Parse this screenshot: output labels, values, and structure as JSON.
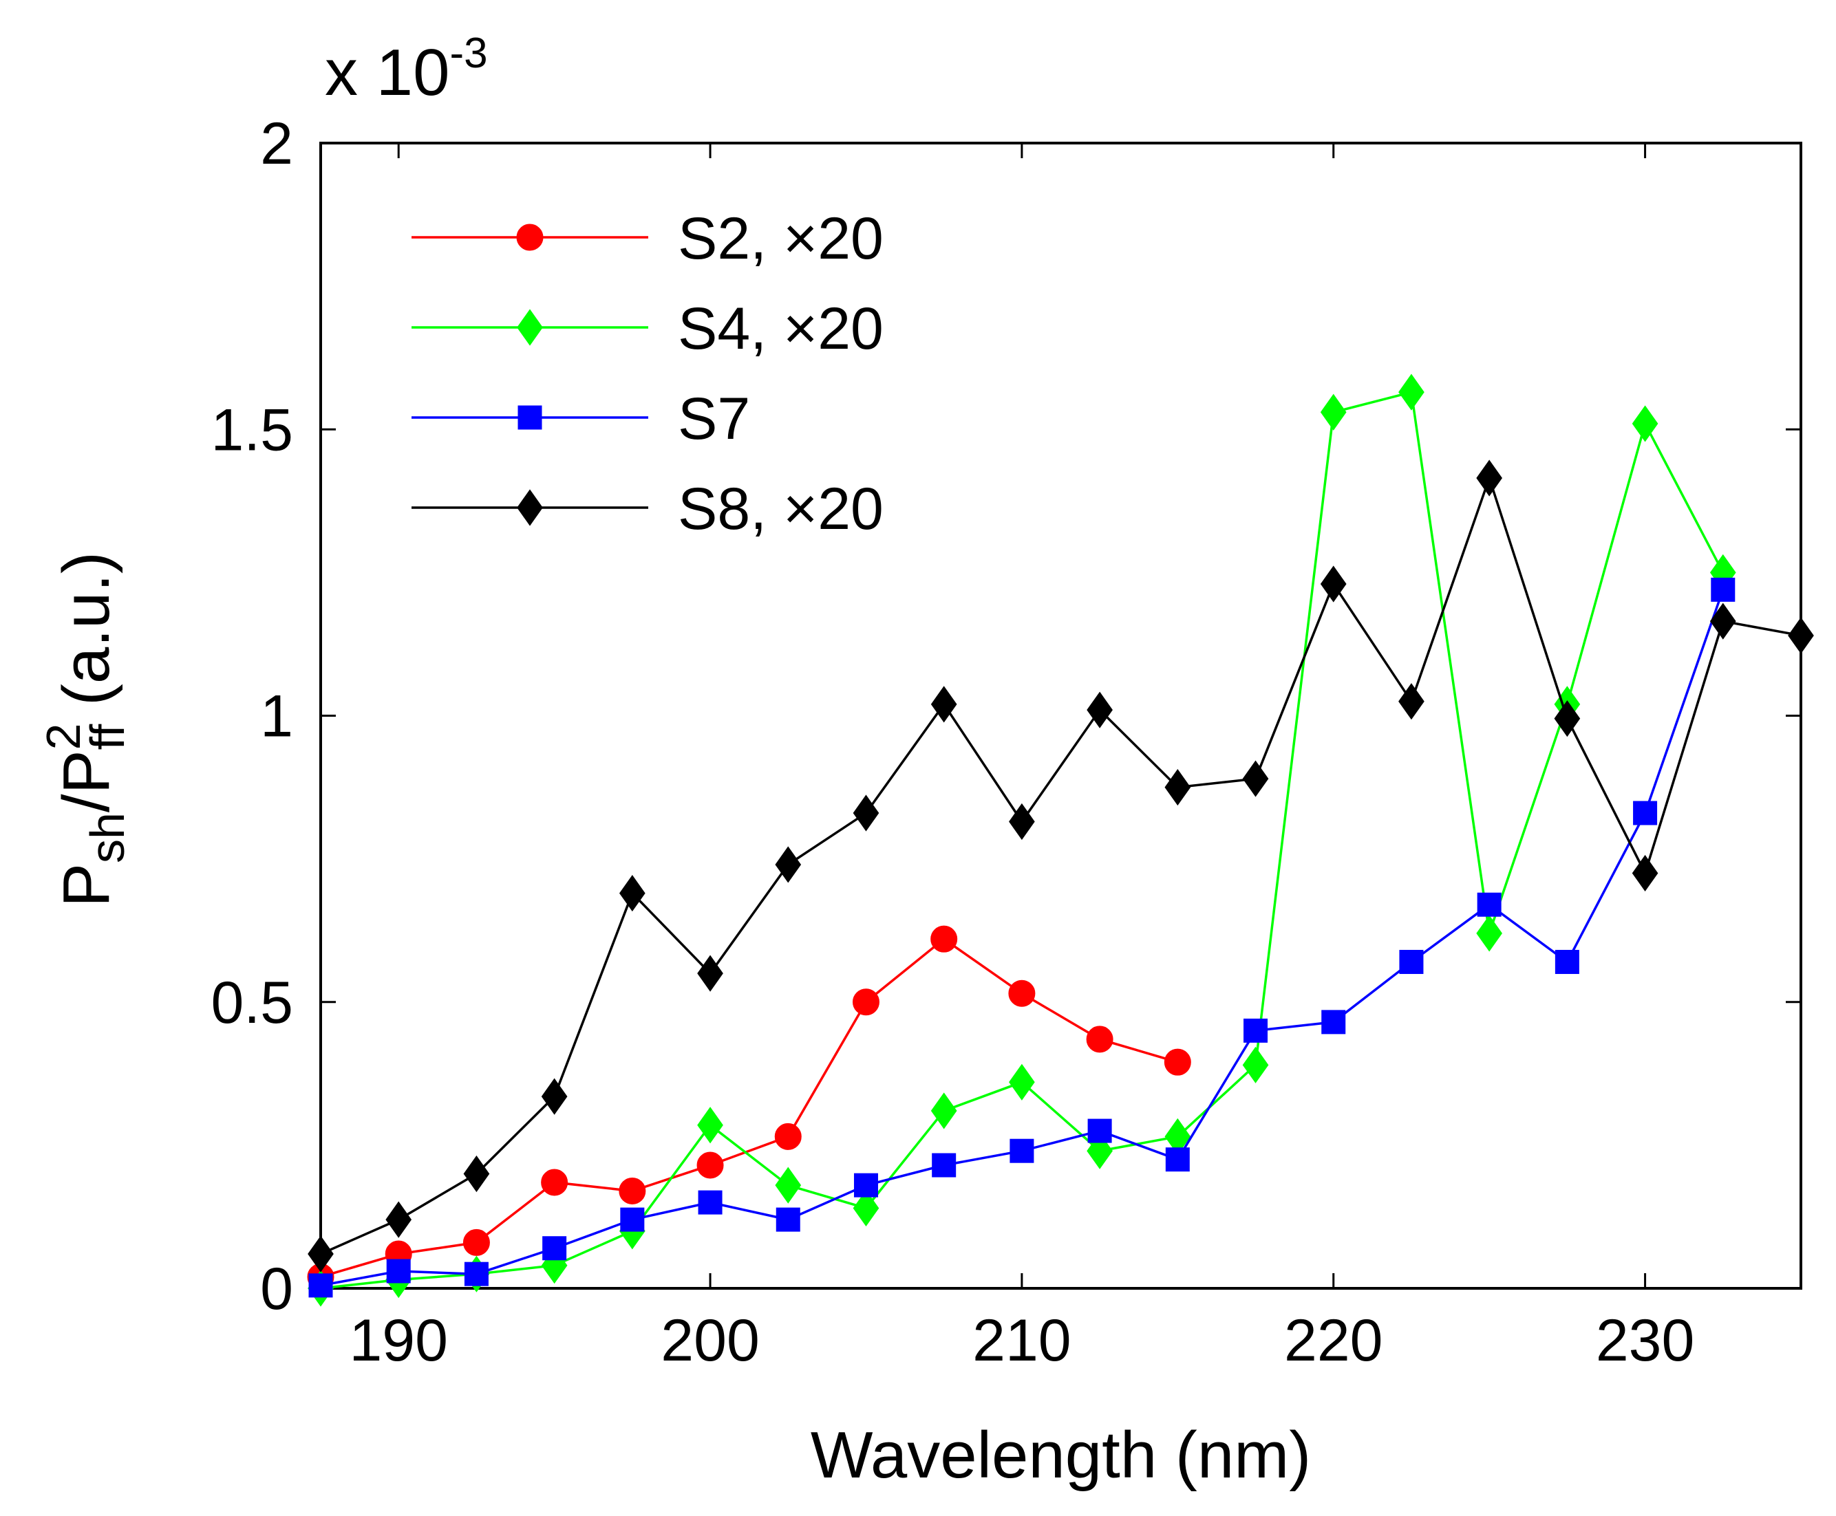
{
  "chart_data": {
    "type": "line",
    "title": "",
    "xlabel": "Wavelength (nm)",
    "ylabel": {
      "base": "P",
      "sub1": "sh",
      "mid": "/P",
      "sup": "2",
      "sub2": "ff",
      "unit": " (a.u.)"
    },
    "exponent_label": {
      "prefix": "x 10",
      "power": "-3"
    },
    "xlim": [
      187.5,
      235
    ],
    "ylim": [
      0,
      2
    ],
    "xticks": [
      190,
      200,
      210,
      220,
      230
    ],
    "yticks": [
      0,
      0.5,
      1,
      1.5,
      2
    ],
    "ytick_labels": [
      "0",
      "0.5",
      "1",
      "1.5",
      "2"
    ],
    "legend_position": "top-left",
    "series": [
      {
        "name": "S2, ×20",
        "color": "#ff0000",
        "marker": "circle",
        "x": [
          187.5,
          190,
          192.5,
          195,
          197.5,
          200,
          202.5,
          205,
          207.5,
          210,
          212.5,
          215
        ],
        "y": [
          0.02,
          0.06,
          0.08,
          0.185,
          0.17,
          0.215,
          0.265,
          0.5,
          0.61,
          0.515,
          0.435,
          0.395
        ]
      },
      {
        "name": "S4, ×20",
        "color": "#00ff00",
        "marker": "diamond",
        "x": [
          187.5,
          190,
          192.5,
          195,
          197.5,
          200,
          202.5,
          205,
          207.5,
          210,
          212.5,
          215,
          217.5,
          220,
          222.5,
          225,
          227.5,
          230,
          232.5
        ],
        "y": [
          0.0,
          0.015,
          0.025,
          0.04,
          0.1,
          0.285,
          0.18,
          0.14,
          0.31,
          0.36,
          0.24,
          0.265,
          0.39,
          1.53,
          1.565,
          0.62,
          1.02,
          1.51,
          1.25
        ]
      },
      {
        "name": "S7",
        "color": "#0000ff",
        "marker": "square",
        "x": [
          187.5,
          190,
          192.5,
          195,
          197.5,
          200,
          202.5,
          205,
          207.5,
          210,
          212.5,
          215,
          217.5,
          220,
          222.5,
          225,
          227.5,
          230,
          232.5
        ],
        "y": [
          0.005,
          0.03,
          0.025,
          0.07,
          0.12,
          0.15,
          0.12,
          0.18,
          0.215,
          0.24,
          0.275,
          0.225,
          0.45,
          0.465,
          0.57,
          0.67,
          0.57,
          0.83,
          1.22
        ]
      },
      {
        "name": "S8, ×20",
        "color": "#000000",
        "marker": "diamond",
        "x": [
          187.5,
          190,
          192.5,
          195,
          197.5,
          200,
          202.5,
          205,
          207.5,
          210,
          212.5,
          215,
          217.5,
          220,
          222.5,
          225,
          227.5,
          230,
          232.5,
          235
        ],
        "y": [
          0.06,
          0.12,
          0.2,
          0.335,
          0.69,
          0.55,
          0.74,
          0.83,
          1.02,
          0.815,
          1.01,
          0.875,
          0.89,
          1.23,
          1.025,
          1.415,
          0.995,
          0.725,
          1.165,
          1.14
        ]
      }
    ]
  }
}
